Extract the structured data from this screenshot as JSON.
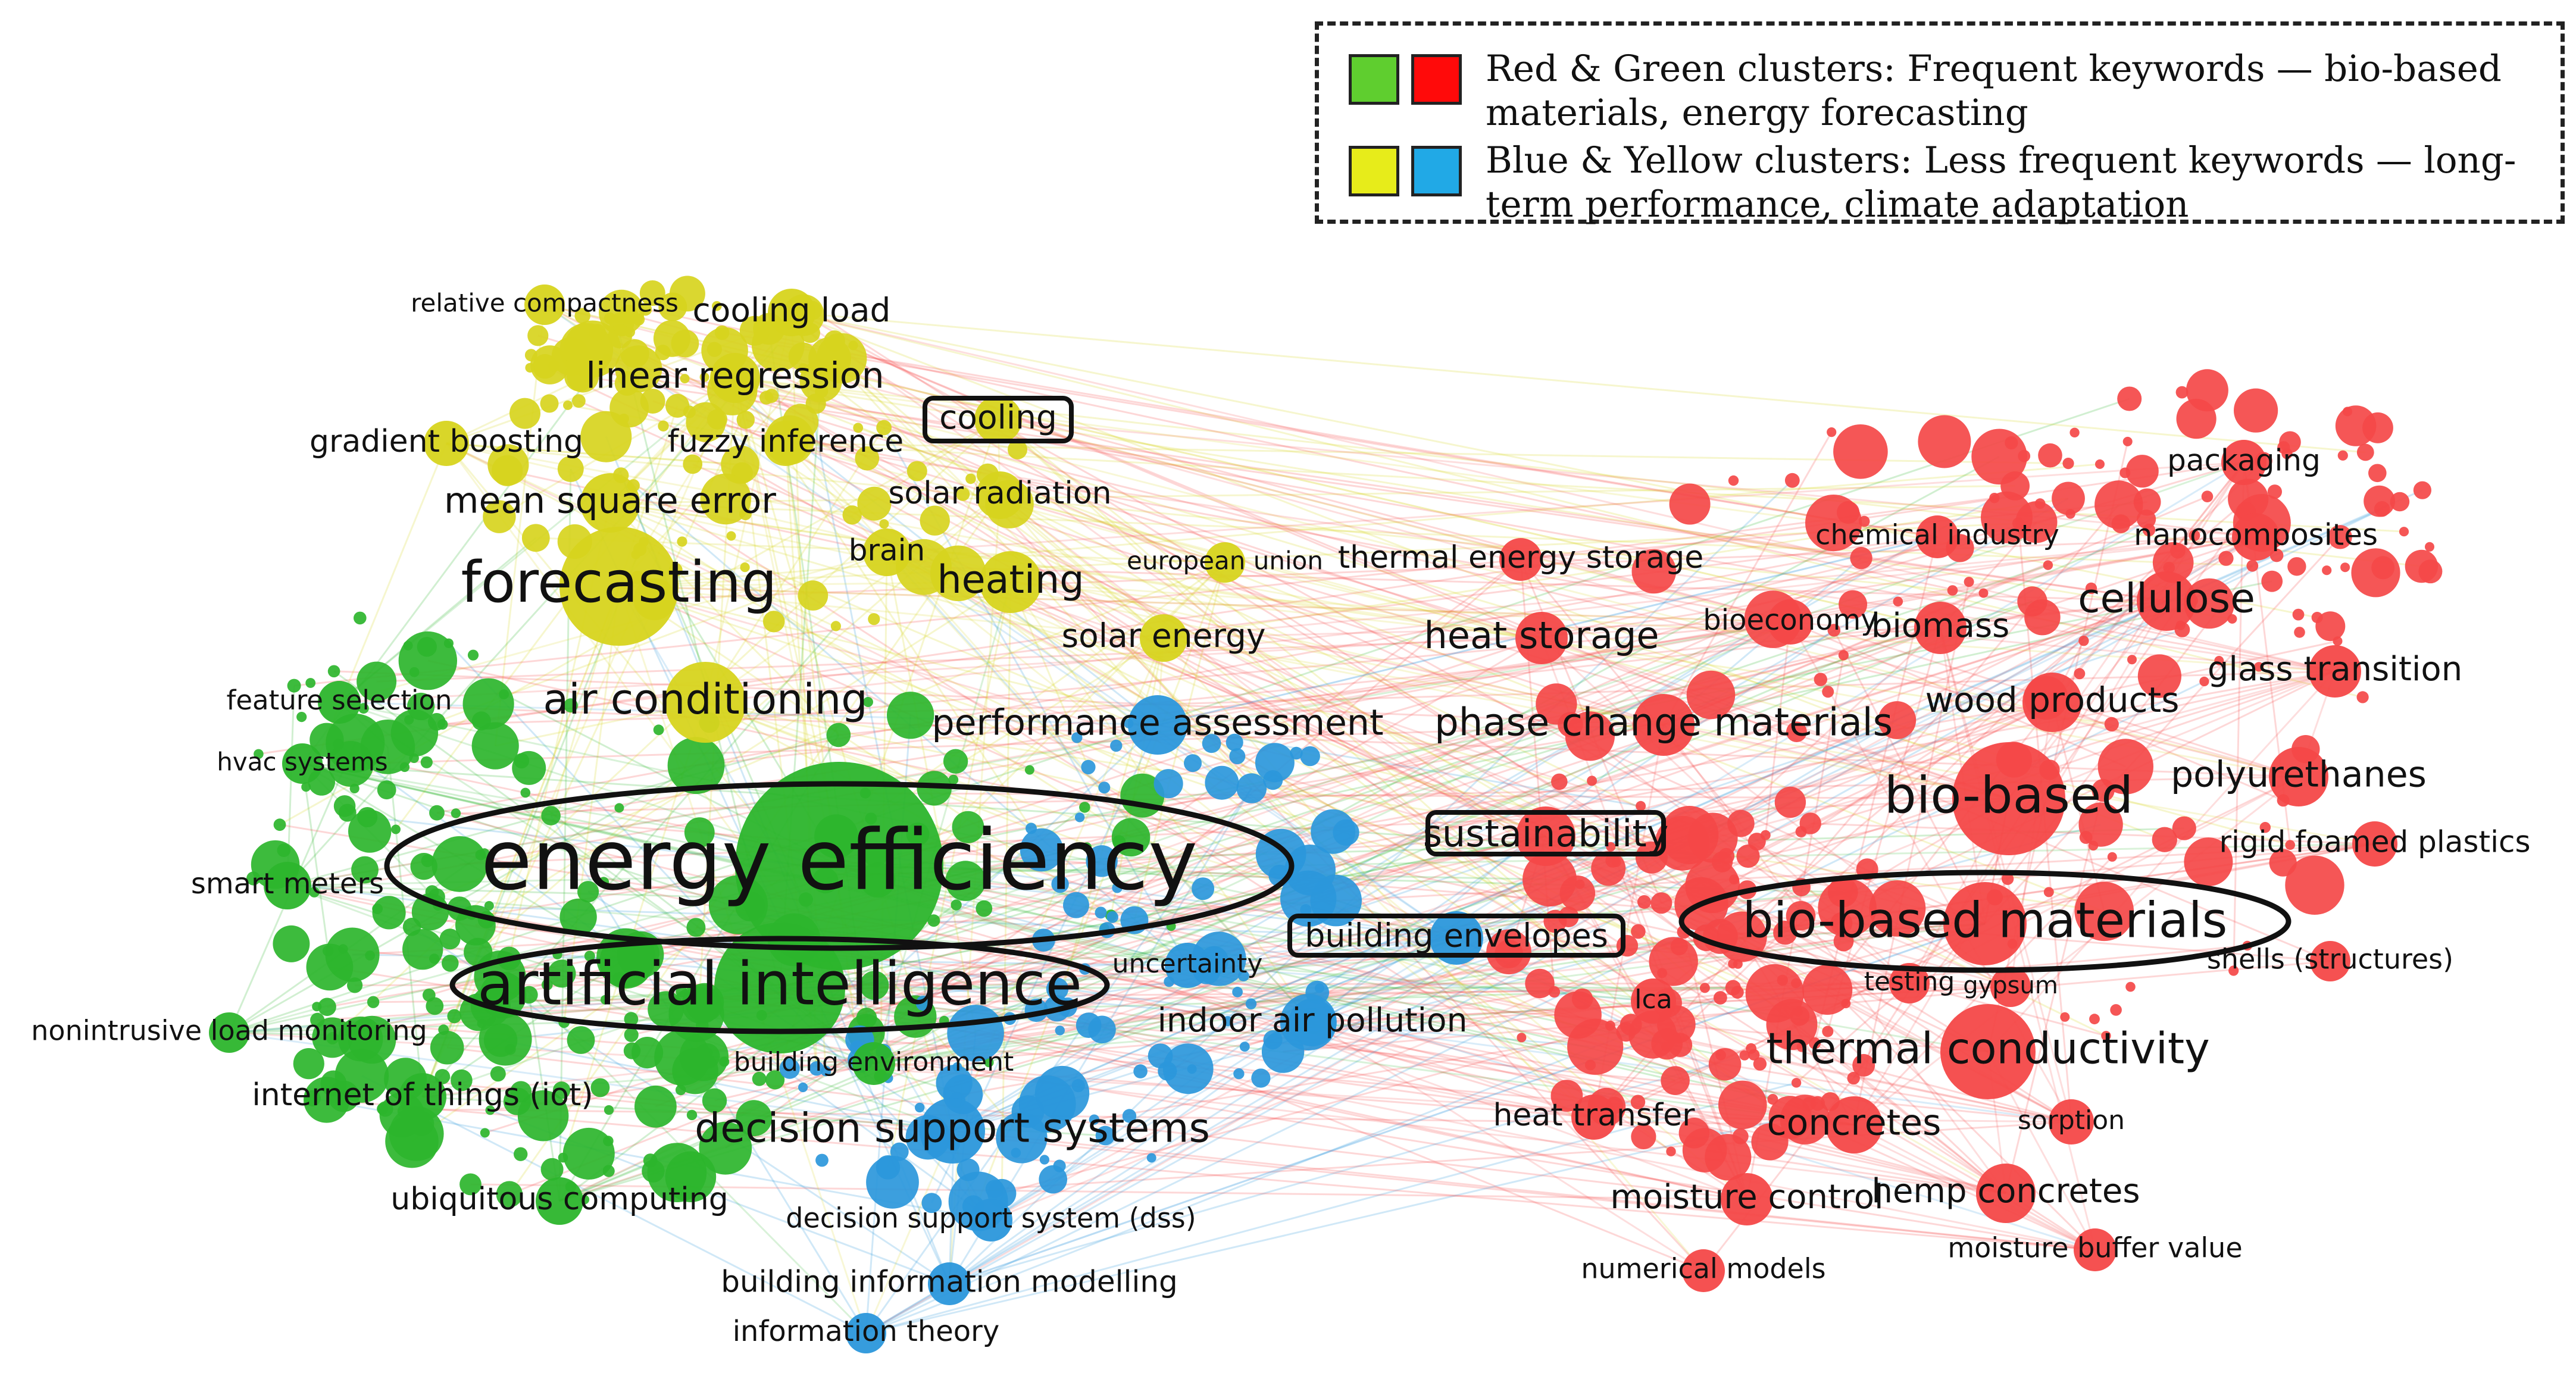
{
  "legend": {
    "rows": [
      {
        "text": "Red & Green clusters: Frequent keywords — bio-based materials, energy forecasting",
        "swatches": [
          "#5fce2f",
          "#ff0a0a"
        ]
      },
      {
        "text": "Blue & Yellow clusters: Less  frequent keywords — long-term performance, climate adaptation",
        "swatches": [
          "#e7ec1a",
          "#21a9e6"
        ]
      }
    ]
  },
  "colors": {
    "green": "#2cb52c",
    "yellow": "#d7d41e",
    "blue": "#2b97db",
    "red": "#f44848"
  },
  "keywords": [
    {
      "label": "energy efficiency",
      "cluster": "green",
      "circled": true
    },
    {
      "label": "artificial intelligence",
      "cluster": "green",
      "circled": true
    },
    {
      "label": "forecasting",
      "cluster": "yellow",
      "circled": false
    },
    {
      "label": "air conditioning",
      "cluster": "yellow",
      "circled": false
    },
    {
      "label": "mean square error",
      "cluster": "yellow",
      "circled": false
    },
    {
      "label": "gradient boosting",
      "cluster": "yellow",
      "circled": false
    },
    {
      "label": "fuzzy inference",
      "cluster": "yellow",
      "circled": false
    },
    {
      "label": "linear regression",
      "cluster": "yellow",
      "circled": false
    },
    {
      "label": "cooling load",
      "cluster": "yellow",
      "circled": false
    },
    {
      "label": "relative compactness",
      "cluster": "yellow",
      "circled": false
    },
    {
      "label": "cooling",
      "cluster": "yellow",
      "circled": true
    },
    {
      "label": "solar radiation",
      "cluster": "yellow",
      "circled": false
    },
    {
      "label": "brain",
      "cluster": "yellow",
      "circled": false
    },
    {
      "label": "heating",
      "cluster": "yellow",
      "circled": false
    },
    {
      "label": "european union",
      "cluster": "yellow",
      "circled": false
    },
    {
      "label": "solar energy",
      "cluster": "yellow",
      "circled": false
    },
    {
      "label": "feature selection",
      "cluster": "green",
      "circled": false
    },
    {
      "label": "hvac systems",
      "cluster": "green",
      "circled": false
    },
    {
      "label": "smart meters",
      "cluster": "green",
      "circled": false
    },
    {
      "label": "nonintrusive load monitoring",
      "cluster": "green",
      "circled": false
    },
    {
      "label": "internet of things (iot)",
      "cluster": "green",
      "circled": false
    },
    {
      "label": "ubiquitous computing",
      "cluster": "green",
      "circled": false
    },
    {
      "label": "building environment",
      "cluster": "green",
      "circled": false
    },
    {
      "label": "performance assessment",
      "cluster": "blue",
      "circled": false
    },
    {
      "label": "decision support systems",
      "cluster": "blue",
      "circled": false
    },
    {
      "label": "decision support system (dss)",
      "cluster": "blue",
      "circled": false
    },
    {
      "label": "building information modelling",
      "cluster": "blue",
      "circled": false
    },
    {
      "label": "information theory",
      "cluster": "blue",
      "circled": false
    },
    {
      "label": "uncertainty",
      "cluster": "blue",
      "circled": false
    },
    {
      "label": "indoor air pollution",
      "cluster": "blue",
      "circled": false
    },
    {
      "label": "building envelopes",
      "cluster": "blue",
      "circled": true
    },
    {
      "label": "sustainability",
      "cluster": "red",
      "circled": true
    },
    {
      "label": "thermal energy storage",
      "cluster": "red",
      "circled": false
    },
    {
      "label": "heat storage",
      "cluster": "red",
      "circled": false
    },
    {
      "label": "phase change materials",
      "cluster": "red",
      "circled": false
    },
    {
      "label": "bioeconomy",
      "cluster": "red",
      "circled": false
    },
    {
      "label": "biomass",
      "cluster": "red",
      "circled": false
    },
    {
      "label": "chemical industry",
      "cluster": "red",
      "circled": false
    },
    {
      "label": "packaging",
      "cluster": "red",
      "circled": false
    },
    {
      "label": "nanocomposites",
      "cluster": "red",
      "circled": false
    },
    {
      "label": "cellulose",
      "cluster": "red",
      "circled": false
    },
    {
      "label": "glass transition",
      "cluster": "red",
      "circled": false
    },
    {
      "label": "wood products",
      "cluster": "red",
      "circled": false
    },
    {
      "label": "bio-based",
      "cluster": "red",
      "circled": false
    },
    {
      "label": "polyurethanes",
      "cluster": "red",
      "circled": false
    },
    {
      "label": "rigid foamed plastics",
      "cluster": "red",
      "circled": false
    },
    {
      "label": "bio-based materials",
      "cluster": "red",
      "circled": true
    },
    {
      "label": "shells (structures)",
      "cluster": "red",
      "circled": false
    },
    {
      "label": "testing",
      "cluster": "red",
      "circled": false
    },
    {
      "label": "gypsum",
      "cluster": "red",
      "circled": false
    },
    {
      "label": "lca",
      "cluster": "red",
      "circled": false
    },
    {
      "label": "thermal conductivity",
      "cluster": "red",
      "circled": false
    },
    {
      "label": "heat transfer",
      "cluster": "red",
      "circled": false
    },
    {
      "label": "concretes",
      "cluster": "red",
      "circled": false
    },
    {
      "label": "sorption",
      "cluster": "red",
      "circled": false
    },
    {
      "label": "moisture control",
      "cluster": "red",
      "circled": false
    },
    {
      "label": "hemp concretes",
      "cluster": "red",
      "circled": false
    },
    {
      "label": "numerical models",
      "cluster": "red",
      "circled": false
    },
    {
      "label": "moisture buffer value",
      "cluster": "red",
      "circled": false
    }
  ]
}
